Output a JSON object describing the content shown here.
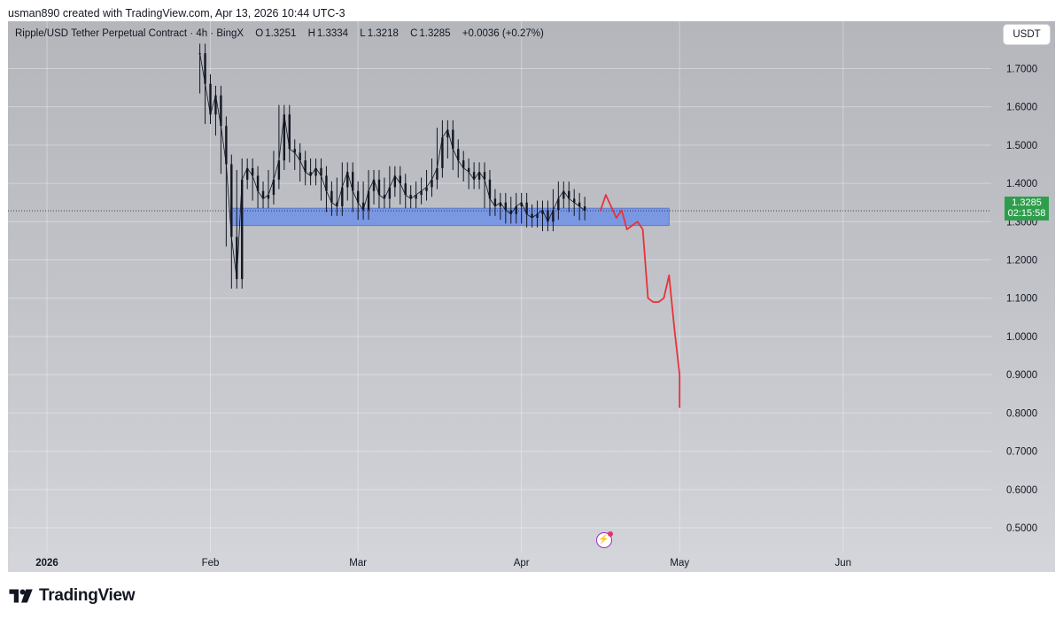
{
  "header": {
    "credit": "usman890 created with TradingView.com, Apr 13, 2026 10:44 UTC-3"
  },
  "legend": {
    "symbol": "Ripple/USD Tether Perpetual Contract · 4h · BingX",
    "open_label": "O",
    "open": "1.3251",
    "high_label": "H",
    "high": "1.3334",
    "low_label": "L",
    "low": "1.3218",
    "close_label": "C",
    "close": "1.3285",
    "change": "+0.0036 (+0.27%)"
  },
  "currency_button": "USDT",
  "price_tag": {
    "price": "1.3285",
    "countdown": "02:15:58"
  },
  "footer": {
    "brand": "TradingView"
  },
  "icons": {
    "alert": "bolt-icon",
    "logo": "tradingview-logo-icon"
  },
  "colors": {
    "candle": "#131722",
    "zone": "#6f8fe6",
    "projection": "#e8323a",
    "price_tag": "#2e9e4c"
  },
  "chart_data": {
    "type": "line",
    "timeframe": "4h",
    "x_axis": {
      "labels": [
        {
          "text": "2026",
          "bold": true,
          "date": "2026-01-01"
        },
        {
          "text": "Feb",
          "bold": false,
          "date": "2026-02-01"
        },
        {
          "text": "Mar",
          "bold": false,
          "date": "2026-03-01"
        },
        {
          "text": "Apr",
          "bold": false,
          "date": "2026-04-01"
        },
        {
          "text": "May",
          "bold": false,
          "date": "2026-05-01"
        },
        {
          "text": "Jun",
          "bold": false,
          "date": "2026-06-01"
        }
      ]
    },
    "y_axis": {
      "range": [
        0.47,
        1.745
      ],
      "ticks": [
        "1.7000",
        "1.6000",
        "1.5000",
        "1.4000",
        "1.3000",
        "1.2000",
        "1.1000",
        "1.0000",
        "0.9000",
        "0.8000",
        "0.7000",
        "0.6000",
        "0.5000"
      ]
    },
    "grid": true,
    "last_price": 1.3285,
    "series": [
      {
        "role": "price",
        "points": [
          [
            "2026-01-30",
            1.74
          ],
          [
            "2026-01-31",
            1.66
          ],
          [
            "2026-02-01",
            1.58
          ],
          [
            "2026-02-02",
            1.63
          ],
          [
            "2026-02-03",
            1.55
          ],
          [
            "2026-02-04",
            1.45
          ],
          [
            "2026-02-05",
            1.26
          ],
          [
            "2026-02-06",
            1.15
          ],
          [
            "2026-02-07",
            1.41
          ],
          [
            "2026-02-08",
            1.44
          ],
          [
            "2026-02-09",
            1.42
          ],
          [
            "2026-02-10",
            1.38
          ],
          [
            "2026-02-11",
            1.36
          ],
          [
            "2026-02-12",
            1.37
          ],
          [
            "2026-02-13",
            1.41
          ],
          [
            "2026-02-14",
            1.46
          ],
          [
            "2026-02-15",
            1.58
          ],
          [
            "2026-02-16",
            1.49
          ],
          [
            "2026-02-17",
            1.48
          ],
          [
            "2026-02-18",
            1.46
          ],
          [
            "2026-02-19",
            1.43
          ],
          [
            "2026-02-20",
            1.42
          ],
          [
            "2026-02-21",
            1.44
          ],
          [
            "2026-02-22",
            1.42
          ],
          [
            "2026-02-23",
            1.38
          ],
          [
            "2026-02-24",
            1.35
          ],
          [
            "2026-02-25",
            1.34
          ],
          [
            "2026-02-26",
            1.39
          ],
          [
            "2026-02-27",
            1.43
          ],
          [
            "2026-02-28",
            1.38
          ],
          [
            "2026-03-01",
            1.35
          ],
          [
            "2026-03-02",
            1.33
          ],
          [
            "2026-03-03",
            1.38
          ],
          [
            "2026-03-04",
            1.41
          ],
          [
            "2026-03-05",
            1.37
          ],
          [
            "2026-03-06",
            1.36
          ],
          [
            "2026-03-07",
            1.39
          ],
          [
            "2026-03-08",
            1.42
          ],
          [
            "2026-03-09",
            1.4
          ],
          [
            "2026-03-10",
            1.37
          ],
          [
            "2026-03-11",
            1.36
          ],
          [
            "2026-03-12",
            1.37
          ],
          [
            "2026-03-13",
            1.38
          ],
          [
            "2026-03-14",
            1.39
          ],
          [
            "2026-03-15",
            1.41
          ],
          [
            "2026-03-16",
            1.44
          ],
          [
            "2026-03-17",
            1.52
          ],
          [
            "2026-03-18",
            1.54
          ],
          [
            "2026-03-19",
            1.49
          ],
          [
            "2026-03-20",
            1.46
          ],
          [
            "2026-03-21",
            1.44
          ],
          [
            "2026-03-22",
            1.43
          ],
          [
            "2026-03-23",
            1.41
          ],
          [
            "2026-03-24",
            1.43
          ],
          [
            "2026-03-25",
            1.41
          ],
          [
            "2026-03-26",
            1.36
          ],
          [
            "2026-03-27",
            1.34
          ],
          [
            "2026-03-28",
            1.35
          ],
          [
            "2026-03-29",
            1.33
          ],
          [
            "2026-03-30",
            1.32
          ],
          [
            "2026-03-31",
            1.34
          ],
          [
            "2026-04-01",
            1.35
          ],
          [
            "2026-04-02",
            1.32
          ],
          [
            "2026-04-03",
            1.31
          ],
          [
            "2026-04-04",
            1.32
          ],
          [
            "2026-04-05",
            1.33
          ],
          [
            "2026-04-06",
            1.3
          ],
          [
            "2026-04-07",
            1.33
          ],
          [
            "2026-04-08",
            1.36
          ],
          [
            "2026-04-09",
            1.38
          ],
          [
            "2026-04-10",
            1.36
          ],
          [
            "2026-04-11",
            1.35
          ],
          [
            "2026-04-12",
            1.34
          ],
          [
            "2026-04-13",
            1.3285
          ]
        ]
      },
      {
        "role": "projection",
        "points": [
          [
            "2026-04-16",
            1.33
          ],
          [
            "2026-04-17",
            1.37
          ],
          [
            "2026-04-19",
            1.31
          ],
          [
            "2026-04-20",
            1.33
          ],
          [
            "2026-04-21",
            1.28
          ],
          [
            "2026-04-22",
            1.29
          ],
          [
            "2026-04-23",
            1.3
          ],
          [
            "2026-04-24",
            1.28
          ],
          [
            "2026-04-25",
            1.1
          ],
          [
            "2026-04-26",
            1.09
          ],
          [
            "2026-04-27",
            1.09
          ],
          [
            "2026-04-28",
            1.1
          ],
          [
            "2026-04-29",
            1.16
          ],
          [
            "2026-04-30",
            1.02
          ],
          [
            "2026-05-01",
            0.9
          ],
          [
            "2026-05-01",
            0.815
          ]
        ]
      }
    ],
    "zones": [
      {
        "from": "2026-02-05",
        "to": "2026-04-29",
        "high": 1.335,
        "low": 1.29
      }
    ]
  }
}
